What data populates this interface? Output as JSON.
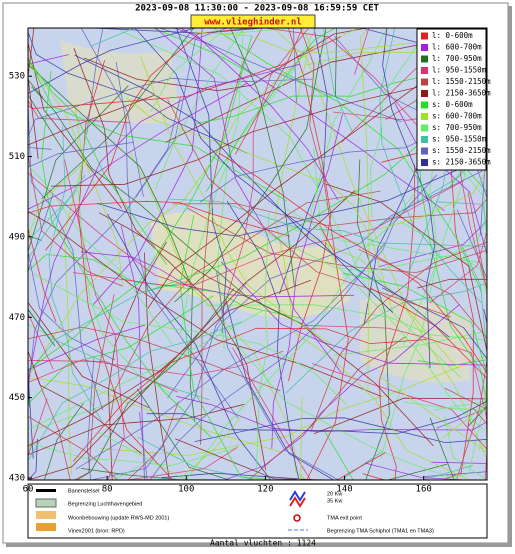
{
  "map": {
    "title": "2023-09-08 11:30:00 - 2023-09-08 16:59:59 CET",
    "site": "www.vlieghinder.nl",
    "xlim": [
      60,
      176
    ],
    "ylim": [
      429.5,
      542
    ],
    "xticks": [
      60,
      80,
      100,
      120,
      140,
      160
    ],
    "yticks": [
      530,
      510,
      490,
      470,
      450,
      430
    ],
    "legend": [
      {
        "name": "l: 0-600m",
        "color": "#e02020"
      },
      {
        "name": "l: 600-700m",
        "color": "#a020e0"
      },
      {
        "name": "l: 700-950m",
        "color": "#207020"
      },
      {
        "name": "l: 950-1550m",
        "color": "#e03070"
      },
      {
        "name": "l: 1550-2150m",
        "color": "#c04040"
      },
      {
        "name": "l: 2150-3650m",
        "color": "#901818"
      },
      {
        "name": "s: 0-600m",
        "color": "#20e020"
      },
      {
        "name": "s: 600-700m",
        "color": "#a0e020"
      },
      {
        "name": "s: 700-950m",
        "color": "#60f060"
      },
      {
        "name": "s: 950-1550m",
        "color": "#40c0a0"
      },
      {
        "name": "s: 1550-2150m",
        "color": "#6060c0"
      },
      {
        "name": "s: 2150-3650m",
        "color": "#3030a0"
      }
    ],
    "bottom_legend": {
      "runways": "Banenstelsel",
      "airport_boundary": "Begrenzing Luchthavengebied",
      "housing": "Woonbebouwing (update RWS-MD 2001)",
      "vinex": "Vinex2001 (bron: RPD)",
      "kw20": "20 Kw",
      "kw35": "35 Kw",
      "tma_exit": "TMA exit point",
      "tma_boundary": "Begrenzing TMA Schiphol  (TMA1 en TMA3)"
    },
    "flights": "Aantal vluchten : 1124"
  }
}
